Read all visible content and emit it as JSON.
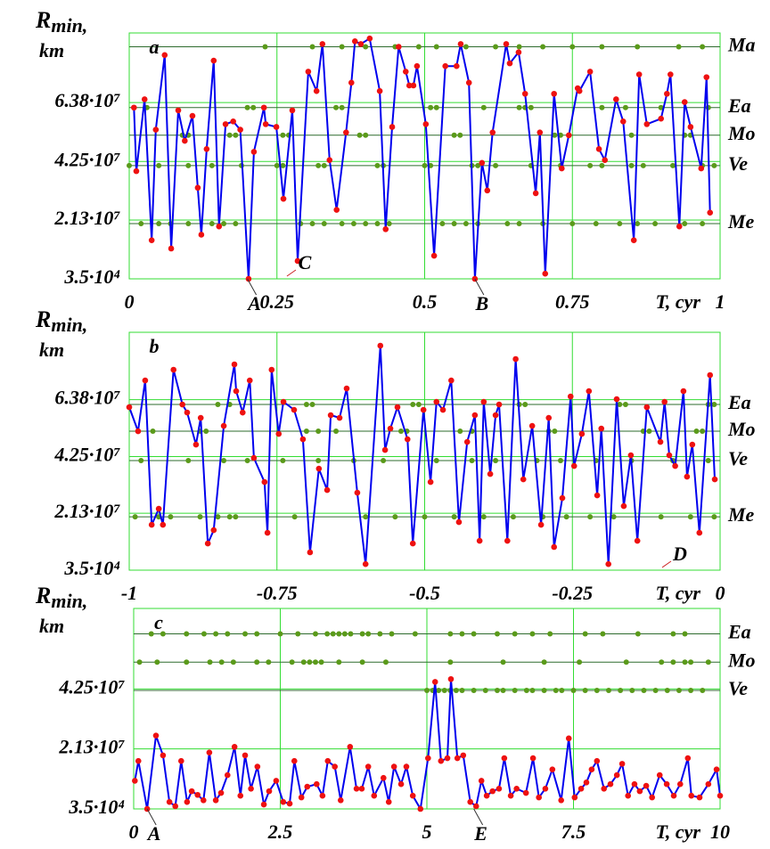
{
  "chart_data": [
    {
      "type": "line",
      "label": "a",
      "ylabel": "R",
      "ylabel_sub": "min,",
      "ylabel_unit": "km",
      "xlabel": "T, cyr",
      "xlim": [
        0,
        1
      ],
      "xticks": [
        0,
        0.25,
        0.5,
        0.75,
        1
      ],
      "ylim": [
        35000,
        89000000.0
      ],
      "yticks": [
        {
          "value": 35000,
          "label": "3.5·10⁴"
        },
        {
          "value": 21300000.0,
          "label": "2.13·10⁷"
        },
        {
          "value": 42500000.0,
          "label": "4.25·10⁷"
        },
        {
          "value": 63800000.0,
          "label": "6.38·10⁷"
        }
      ],
      "grid": true,
      "color": "#0000ee",
      "marker_color": "#ee1111",
      "level_color": "#5a9a1a",
      "x": [
        0.008,
        0.012,
        0.026,
        0.038,
        0.045,
        0.06,
        0.071,
        0.083,
        0.094,
        0.107,
        0.116,
        0.122,
        0.131,
        0.143,
        0.152,
        0.163,
        0.176,
        0.188,
        0.202,
        0.211,
        0.228,
        0.231,
        0.249,
        0.261,
        0.276,
        0.285,
        0.303,
        0.317,
        0.327,
        0.339,
        0.351,
        0.367,
        0.376,
        0.382,
        0.392,
        0.407,
        0.424,
        0.434,
        0.445,
        0.456,
        0.468,
        0.474,
        0.481,
        0.487,
        0.502,
        0.516,
        0.535,
        0.554,
        0.561,
        0.575,
        0.585,
        0.597,
        0.606,
        0.615,
        0.638,
        0.644,
        0.659,
        0.67,
        0.688,
        0.695,
        0.704,
        0.719,
        0.732,
        0.744,
        0.759,
        0.762,
        0.78,
        0.795,
        0.805,
        0.824,
        0.836,
        0.854,
        0.863,
        0.876,
        0.9,
        0.91,
        0.916,
        0.931,
        0.94,
        0.95,
        0.968,
        0.977,
        0.983
      ],
      "values": [
        62000000.0,
        39000000.0,
        65000000.0,
        14000000.0,
        54000000.0,
        81000000.0,
        11000000.0,
        61000000.0,
        50000000.0,
        59000000.0,
        33000000.0,
        16000000.0,
        47000000.0,
        79000000.0,
        19000000.0,
        56000000.0,
        57000000.0,
        54000000.0,
        35000,
        46000000.0,
        62000000.0,
        56000000.0,
        55000000.0,
        29000000.0,
        61000000.0,
        6500000.0,
        75000000.0,
        68000000.0,
        85000000.0,
        43000000.0,
        25000000.0,
        53000000.0,
        71000000.0,
        86000000.0,
        85000000.0,
        87000000.0,
        68000000.0,
        18000000.0,
        55000000.0,
        84000000.0,
        75000000.0,
        70000000.0,
        70000000.0,
        77000000.0,
        56000000.0,
        8400000.0,
        77000000.0,
        77000000.0,
        85000000.0,
        71000000.0,
        35000,
        42000000.0,
        32000000.0,
        53000000.0,
        85000000.0,
        78000000.0,
        82000000.0,
        67000000.0,
        31000000.0,
        53000000.0,
        1900000.0,
        67000000.0,
        40000000.0,
        52000000.0,
        69000000.0,
        68000000.0,
        75000000.0,
        47000000.0,
        43000000.0,
        65000000.0,
        57000000.0,
        14000000.0,
        74000000.0,
        56000000.0,
        58000000.0,
        67000000.0,
        74000000.0,
        19000000.0,
        64000000.0,
        55000000.0,
        40000000.0,
        73000000.0,
        24000000.0
      ],
      "levels": [
        {
          "name": "Ma",
          "value": 84000000.0,
          "events": [
            0.23,
            0.31,
            0.36,
            0.4,
            0.45,
            0.49,
            0.52,
            0.57,
            0.62,
            0.66,
            0.7,
            0.75,
            0.8,
            0.86,
            0.93,
            0.97
          ]
        },
        {
          "name": "Ea",
          "value": 62000000.0,
          "events": [
            0.03,
            0.2,
            0.21,
            0.35,
            0.36,
            0.51,
            0.52,
            0.6,
            0.66,
            0.67,
            0.68,
            0.8,
            0.84,
            0.9,
            0.98
          ]
        },
        {
          "name": "Mo",
          "value": 52000000.0,
          "events": [
            0.09,
            0.1,
            0.17,
            0.18,
            0.26,
            0.27,
            0.39,
            0.4,
            0.55,
            0.56,
            0.72,
            0.73,
            0.85,
            0.94,
            0.95
          ]
        },
        {
          "name": "Ve",
          "value": 41000000.0,
          "events": [
            0,
            0.05,
            0.1,
            0.14,
            0.19,
            0.25,
            0.26,
            0.32,
            0.33,
            0.42,
            0.43,
            0.5,
            0.51,
            0.58,
            0.59,
            0.62,
            0.68,
            0.73,
            0.78,
            0.8,
            0.85,
            0.87,
            0.92,
            0.97,
            0.99
          ]
        },
        {
          "name": "Me",
          "value": 20000000.0,
          "events": [
            0.02,
            0.05,
            0.07,
            0.1,
            0.14,
            0.16,
            0.18,
            0.29,
            0.31,
            0.33,
            0.36,
            0.38,
            0.4,
            0.42,
            0.44,
            0.53,
            0.55,
            0.57,
            0.59,
            0.64,
            0.66,
            0.7,
            0.75,
            0.79,
            0.83,
            0.86,
            0.89,
            0.94,
            0.97
          ]
        }
      ],
      "annotations": [
        {
          "text": "A",
          "x": 0.2,
          "placement": "below"
        },
        {
          "text": "C",
          "x": 0.285,
          "placement": "inside"
        },
        {
          "text": "B",
          "x": 0.585,
          "placement": "below"
        }
      ]
    },
    {
      "type": "line",
      "label": "b",
      "ylabel": "R",
      "ylabel_sub": "min,",
      "ylabel_unit": "km",
      "xlabel": "T, cyr",
      "xlim": [
        -1,
        0
      ],
      "xticks": [
        -1,
        -0.75,
        -0.5,
        -0.25,
        0
      ],
      "ylim": [
        35000,
        89000000.0
      ],
      "yticks": [
        {
          "value": 35000,
          "label": "3.5·10⁴"
        },
        {
          "value": 21300000.0,
          "label": "2.13·10⁷"
        },
        {
          "value": 42500000.0,
          "label": "4.25·10⁷"
        },
        {
          "value": 63800000.0,
          "label": "6.38·10⁷"
        }
      ],
      "grid": true,
      "color": "#0000ee",
      "marker_color": "#ee1111",
      "level_color": "#5a9a1a",
      "x": [
        -1.0,
        -0.985,
        -0.973,
        -0.962,
        -0.95,
        -0.943,
        -0.925,
        -0.91,
        -0.902,
        -0.887,
        -0.879,
        -0.867,
        -0.857,
        -0.84,
        -0.822,
        -0.819,
        -0.808,
        -0.796,
        -0.789,
        -0.771,
        -0.766,
        -0.759,
        -0.747,
        -0.739,
        -0.721,
        -0.706,
        -0.694,
        -0.679,
        -0.665,
        -0.659,
        -0.644,
        -0.632,
        -0.614,
        -0.6,
        -0.575,
        -0.567,
        -0.558,
        -0.546,
        -0.529,
        -0.52,
        -0.502,
        -0.49,
        -0.48,
        -0.469,
        -0.455,
        -0.442,
        -0.428,
        -0.415,
        -0.407,
        -0.4,
        -0.389,
        -0.38,
        -0.374,
        -0.36,
        -0.346,
        -0.333,
        -0.318,
        -0.303,
        -0.29,
        -0.281,
        -0.267,
        -0.253,
        -0.247,
        -0.234,
        -0.222,
        -0.208,
        -0.201,
        -0.189,
        -0.175,
        -0.163,
        -0.151,
        -0.14,
        -0.124,
        -0.101,
        -0.094,
        -0.086,
        -0.076,
        -0.062,
        -0.056,
        -0.047,
        -0.035,
        -0.017,
        -0.009
      ],
      "values": [
        61000000.0,
        52000000.0,
        71000000.0,
        17000000.0,
        23000000.0,
        17000000.0,
        75000000.0,
        62000000.0,
        59000000.0,
        47000000.0,
        57000000.0,
        10000000.0,
        15000000.0,
        54000000.0,
        77000000.0,
        67000000.0,
        59000000.0,
        71000000.0,
        42000000.0,
        33000000.0,
        14000000.0,
        75000000.0,
        51000000.0,
        63000000.0,
        60000000.0,
        49000000.0,
        6700000.0,
        38000000.0,
        30000000.0,
        58000000.0,
        57000000.0,
        68000000.0,
        29000000.0,
        2300000.0,
        84000000.0,
        45000000.0,
        53000000.0,
        61000000.0,
        49000000.0,
        10000000.0,
        60000000.0,
        33000000.0,
        63000000.0,
        60000000.0,
        71000000.0,
        18000000.0,
        48000000.0,
        58000000.0,
        11000000.0,
        63000000.0,
        36000000.0,
        58000000.0,
        62000000.0,
        11000000.0,
        79000000.0,
        34000000.0,
        54000000.0,
        17000000.0,
        57000000.0,
        8700000.0,
        27000000.0,
        65000000.0,
        39000000.0,
        51000000.0,
        67000000.0,
        28000000.0,
        53000000.0,
        2300000.0,
        64000000.0,
        24000000.0,
        43000000.0,
        11000000.0,
        61000000.0,
        48000000.0,
        63000000.0,
        43000000.0,
        39000000.0,
        67000000.0,
        35000000.0,
        47000000.0,
        14000000.0,
        73000000.0,
        34000000.0
      ],
      "levels": [
        {
          "name": "Ea",
          "value": 62000000.0,
          "events": [
            -0.85,
            -0.83,
            -0.7,
            -0.69,
            -0.52,
            -0.51,
            -0.34,
            -0.33,
            -0.17,
            -0.16,
            -0.02,
            -0.01
          ]
        },
        {
          "name": "Mo",
          "value": 52000000.0,
          "events": [
            -0.96,
            -0.88,
            -0.87,
            -0.7,
            -0.68,
            -0.65,
            -0.54,
            -0.53,
            -0.44,
            -0.42,
            -0.29,
            -0.28,
            -0.13,
            -0.12,
            -0.04,
            -0.03
          ]
        },
        {
          "name": "Ve",
          "value": 41000000.0,
          "events": [
            -0.98,
            -0.9,
            -0.84,
            -0.8,
            -0.74,
            -0.68,
            -0.62,
            -0.57,
            -0.48,
            -0.42,
            -0.38,
            -0.31,
            -0.27,
            -0.21,
            -0.15,
            -0.08,
            -0.02
          ]
        },
        {
          "name": "Me",
          "value": 20000000.0,
          "events": [
            -0.99,
            -0.95,
            -0.93,
            -0.88,
            -0.85,
            -0.83,
            -0.82,
            -0.72,
            -0.6,
            -0.55,
            -0.5,
            -0.45,
            -0.4,
            -0.35,
            -0.3,
            -0.26,
            -0.22,
            -0.18,
            -0.1,
            -0.05,
            -0.01
          ]
        }
      ],
      "annotations": [
        {
          "text": "D",
          "x": -0.08,
          "placement": "inside"
        }
      ]
    },
    {
      "type": "line",
      "label": "c",
      "ylabel": "R",
      "ylabel_sub": "min,",
      "ylabel_unit": "km",
      "xlabel": "T, cyr",
      "xlim": [
        0,
        10
      ],
      "xticks": [
        0,
        2.5,
        5,
        7.5,
        10
      ],
      "ylim": [
        35000,
        71000000.0
      ],
      "yticks": [
        {
          "value": 35000,
          "label": "3.5·10⁴"
        },
        {
          "value": 21300000.0,
          "label": "2.13·10⁷"
        },
        {
          "value": 42500000.0,
          "label": "4.25·10⁷"
        }
      ],
      "grid": true,
      "color": "#0000ee",
      "marker_color": "#ee1111",
      "level_color": "#5a9a1a",
      "x": [
        0.02,
        0.08,
        0.23,
        0.38,
        0.5,
        0.61,
        0.71,
        0.81,
        0.91,
        0.99,
        1.09,
        1.19,
        1.29,
        1.4,
        1.49,
        1.6,
        1.72,
        1.82,
        1.9,
        2.0,
        2.11,
        2.22,
        2.31,
        2.43,
        2.55,
        2.66,
        2.74,
        2.86,
        2.96,
        3.12,
        3.22,
        3.31,
        3.43,
        3.53,
        3.69,
        3.8,
        3.89,
        4.0,
        4.1,
        4.26,
        4.35,
        4.44,
        4.56,
        4.65,
        4.76,
        4.89,
        5.02,
        5.14,
        5.24,
        5.35,
        5.41,
        5.52,
        5.62,
        5.74,
        5.84,
        5.93,
        6.02,
        6.12,
        6.23,
        6.32,
        6.43,
        6.53,
        6.69,
        6.81,
        6.91,
        7.02,
        7.14,
        7.29,
        7.42,
        7.52,
        7.63,
        7.72,
        7.81,
        7.9,
        8.02,
        8.13,
        8.24,
        8.33,
        8.43,
        8.54,
        8.63,
        8.74,
        8.84,
        8.97,
        9.09,
        9.21,
        9.32,
        9.45,
        9.51,
        9.65,
        9.8,
        9.94,
        10.0
      ],
      "values": [
        10000000.0,
        17000000.0,
        35000,
        26000000.0,
        19000000.0,
        2500000.0,
        1000000.0,
        17000000.0,
        2500000.0,
        6300000.0,
        5000000.0,
        3100000.0,
        20000000.0,
        3100000.0,
        5700000.0,
        12000000.0,
        22000000.0,
        4700000.0,
        19000000.0,
        7200000.0,
        15000000.0,
        1600000.0,
        6300000.0,
        10000000.0,
        2500000.0,
        1900000.0,
        17000000.0,
        4100000.0,
        7900000.0,
        8800000.0,
        4700000.0,
        17000000.0,
        15000000.0,
        3100000.0,
        22000000.0,
        7200000.0,
        7200000.0,
        15000000.0,
        4700000.0,
        11000000.0,
        2500000.0,
        15000000.0,
        8800000.0,
        15000000.0,
        4700000.0,
        35000,
        18000000.0,
        45000000.0,
        17000000.0,
        18000000.0,
        46000000.0,
        18000000.0,
        19000000.0,
        2500000.0,
        1000000.0,
        10000000.0,
        4700000.0,
        6300000.0,
        7200000.0,
        18000000.0,
        4700000.0,
        7200000.0,
        5700000.0,
        18000000.0,
        4100000.0,
        7200000.0,
        14000000.0,
        3100000.0,
        25000000.0,
        4100000.0,
        7200000.0,
        9400000.0,
        14000000.0,
        17000000.0,
        7200000.0,
        8800000.0,
        12000000.0,
        16000000.0,
        4700000.0,
        8800000.0,
        6300000.0,
        8200000.0,
        4100000.0,
        12000000.0,
        8800000.0,
        4700000.0,
        8800000.0,
        18000000.0,
        4700000.0,
        4100000.0,
        8800000.0,
        14000000.0,
        4700000.0
      ],
      "levels": [
        {
          "name": "Ea",
          "value": 62000000.0,
          "events": [
            0.3,
            0.5,
            0.9,
            1.2,
            1.4,
            1.6,
            1.9,
            2.1,
            2.5,
            2.8,
            3.1,
            3.3,
            3.4,
            3.5,
            3.6,
            3.7,
            3.9,
            4.0,
            4.2,
            4.4,
            4.8,
            5.4,
            5.6,
            5.8,
            6.2,
            6.5,
            6.8,
            7.1,
            7.7,
            8.0,
            8.6,
            9.2,
            9.4
          ]
        },
        {
          "name": "Mo",
          "value": 52000000.0,
          "events": [
            0.1,
            0.4,
            0.9,
            1.3,
            1.5,
            1.7,
            2.1,
            2.3,
            2.7,
            2.9,
            3.0,
            3.1,
            3.2,
            3.5,
            3.9,
            4.3,
            5.4,
            6.3,
            7.0,
            7.6,
            8.4,
            9.0,
            9.2,
            9.4,
            9.5,
            9.8
          ]
        },
        {
          "name": "Ve",
          "value": 42000000.0,
          "events": [
            5.0,
            5.1,
            5.2,
            5.3,
            5.4,
            5.5,
            5.6,
            5.8,
            6.0,
            6.2,
            6.3,
            6.5,
            6.7,
            6.8,
            7.0,
            7.2,
            7.3,
            7.5,
            7.7,
            7.9,
            8.1,
            8.3,
            8.5,
            8.7,
            8.9,
            9.1,
            9.3,
            9.5,
            9.7
          ]
        }
      ],
      "annotations": [
        {
          "text": "A",
          "x": 0.23,
          "placement": "below"
        },
        {
          "text": "E",
          "x": 5.8,
          "placement": "below"
        }
      ]
    }
  ]
}
